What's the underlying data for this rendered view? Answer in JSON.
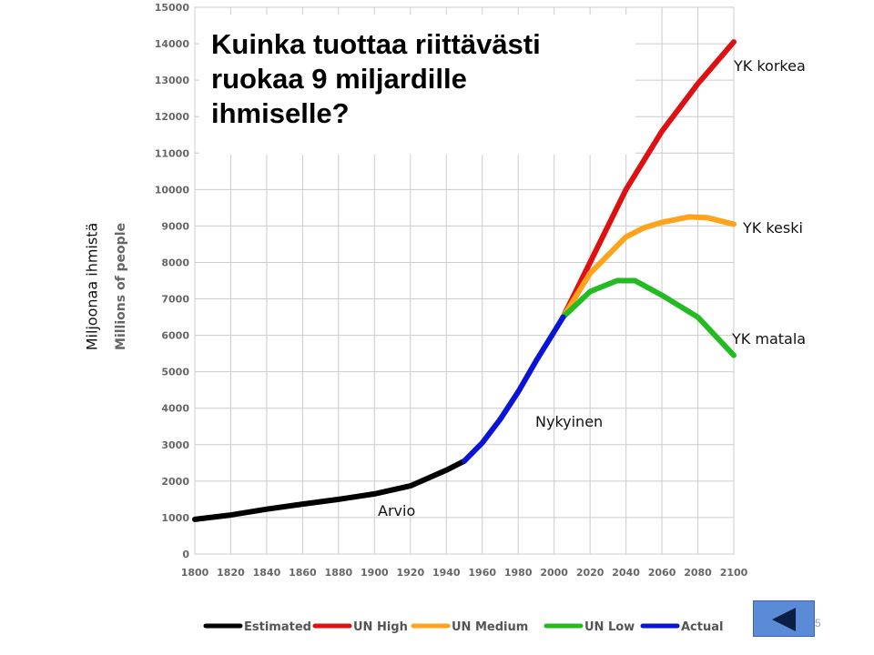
{
  "slide": {
    "title": "Kuinka tuottaa riittävästi ruokaa 9 miljardille ihmiselle?",
    "side_label": "Miljoonaa ihmistä",
    "page_number": "5",
    "nav_icon": "back-arrow-icon"
  },
  "annotations": {
    "un_high": "YK korkea",
    "un_medium": "YK keski",
    "un_low": "YK matala",
    "current": "Nykyinen",
    "estimate": "Arvio"
  },
  "chart_data": {
    "type": "line",
    "ylabel": "Millions of people",
    "xlabel": "",
    "xlim": [
      1800,
      2100
    ],
    "ylim": [
      0,
      15000
    ],
    "xticks": [
      1800,
      1820,
      1840,
      1860,
      1880,
      1900,
      1920,
      1940,
      1960,
      1980,
      2000,
      2020,
      2040,
      2060,
      2080,
      2100
    ],
    "yticks": [
      0,
      1000,
      2000,
      3000,
      4000,
      5000,
      6000,
      7000,
      8000,
      9000,
      10000,
      11000,
      12000,
      13000,
      14000,
      15000
    ],
    "grid": true,
    "legend_position": "bottom",
    "series": [
      {
        "name": "Estimated",
        "color": "#000000",
        "points": [
          [
            1800,
            950
          ],
          [
            1820,
            1070
          ],
          [
            1840,
            1230
          ],
          [
            1860,
            1370
          ],
          [
            1880,
            1500
          ],
          [
            1900,
            1650
          ],
          [
            1920,
            1870
          ],
          [
            1940,
            2300
          ],
          [
            1950,
            2550
          ]
        ]
      },
      {
        "name": "UN High",
        "color": "#dd1111",
        "points": [
          [
            2005,
            6500
          ],
          [
            2020,
            8000
          ],
          [
            2040,
            10000
          ],
          [
            2050,
            10800
          ],
          [
            2060,
            11600
          ],
          [
            2080,
            12900
          ],
          [
            2100,
            14050
          ]
        ]
      },
      {
        "name": "UN Medium",
        "color": "#ffa31a",
        "points": [
          [
            2005,
            6500
          ],
          [
            2020,
            7700
          ],
          [
            2040,
            8700
          ],
          [
            2050,
            8950
          ],
          [
            2060,
            9100
          ],
          [
            2075,
            9250
          ],
          [
            2085,
            9230
          ],
          [
            2100,
            9050
          ]
        ]
      },
      {
        "name": "UN Low",
        "color": "#22bb22",
        "points": [
          [
            2005,
            6500
          ],
          [
            2020,
            7200
          ],
          [
            2035,
            7500
          ],
          [
            2045,
            7500
          ],
          [
            2060,
            7100
          ],
          [
            2080,
            6500
          ],
          [
            2100,
            5450
          ]
        ]
      },
      {
        "name": "Actual",
        "color": "#0a14d6",
        "points": [
          [
            1950,
            2550
          ],
          [
            1960,
            3050
          ],
          [
            1970,
            3700
          ],
          [
            1980,
            4450
          ],
          [
            1990,
            5300
          ],
          [
            2000,
            6100
          ],
          [
            2005,
            6500
          ]
        ]
      }
    ]
  }
}
